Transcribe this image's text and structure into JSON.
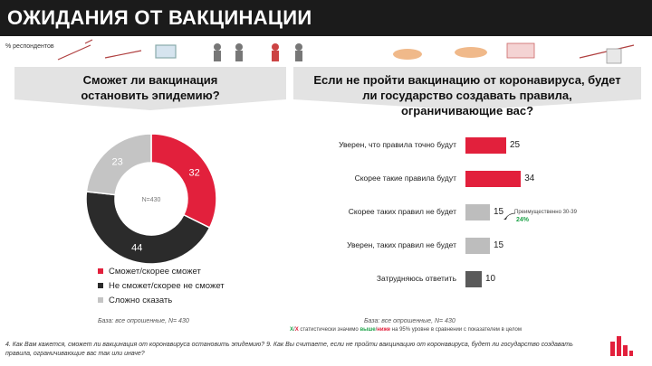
{
  "header": {
    "title": "ОЖИДАНИЯ ОТ ВАКЦИНАЦИИ"
  },
  "respondents_label": "% респондентов",
  "colors": {
    "red": "#e2203c",
    "dark": "#2b2b2b",
    "gray": "#c4c4c4",
    "bar_gray": "#bdbdbd",
    "bar_dark": "#5a5a5a"
  },
  "left_question": "Сможет ли вакцинация остановить эпидемию?",
  "right_question": "Если не пройти вакцинацию от коронавируса, будет ли государство создавать правила, ограничивающие вас?",
  "chart_data": [
    {
      "type": "pie",
      "center_label": "N=430",
      "categories": [
        "Сможет/скорее сможет",
        "Не сможет/скорее не сможет",
        "Сложно сказать"
      ],
      "values": [
        32,
        44,
        23
      ],
      "legend": "bottom"
    },
    {
      "type": "bar",
      "categories": [
        "Уверен, что правила точно будут",
        "Скорее такие правила будут",
        "Скорее таких правил не будет",
        "Уверен, таких правил не будет",
        "Затрудняюсь ответить"
      ],
      "values": [
        25,
        34,
        15,
        15,
        10
      ],
      "xlim": [
        0,
        60
      ]
    }
  ],
  "annotation": {
    "label": "Преимущественно 30-39",
    "value": "24%"
  },
  "base_left": "База: все опрошенные, N= 430",
  "base_right": "База: все опрошенные, N= 430",
  "significance": {
    "marker_a": "Х",
    "marker_b": "Х",
    "text_pre": " статистически значимо ",
    "word_a": "выше",
    "word_b": "ниже",
    "text_post": " на 95% уровне в сравнении с показателем в целом"
  },
  "footnote": "4. Как Вам кажется, сможет ли вакцинация от коронавируса остановить эпидемию? 9. Как Вы считаете, если не пройти вакцинацию от коронавируса, будет ли государство создавать правила, ограничивающие вас так или иначе?"
}
